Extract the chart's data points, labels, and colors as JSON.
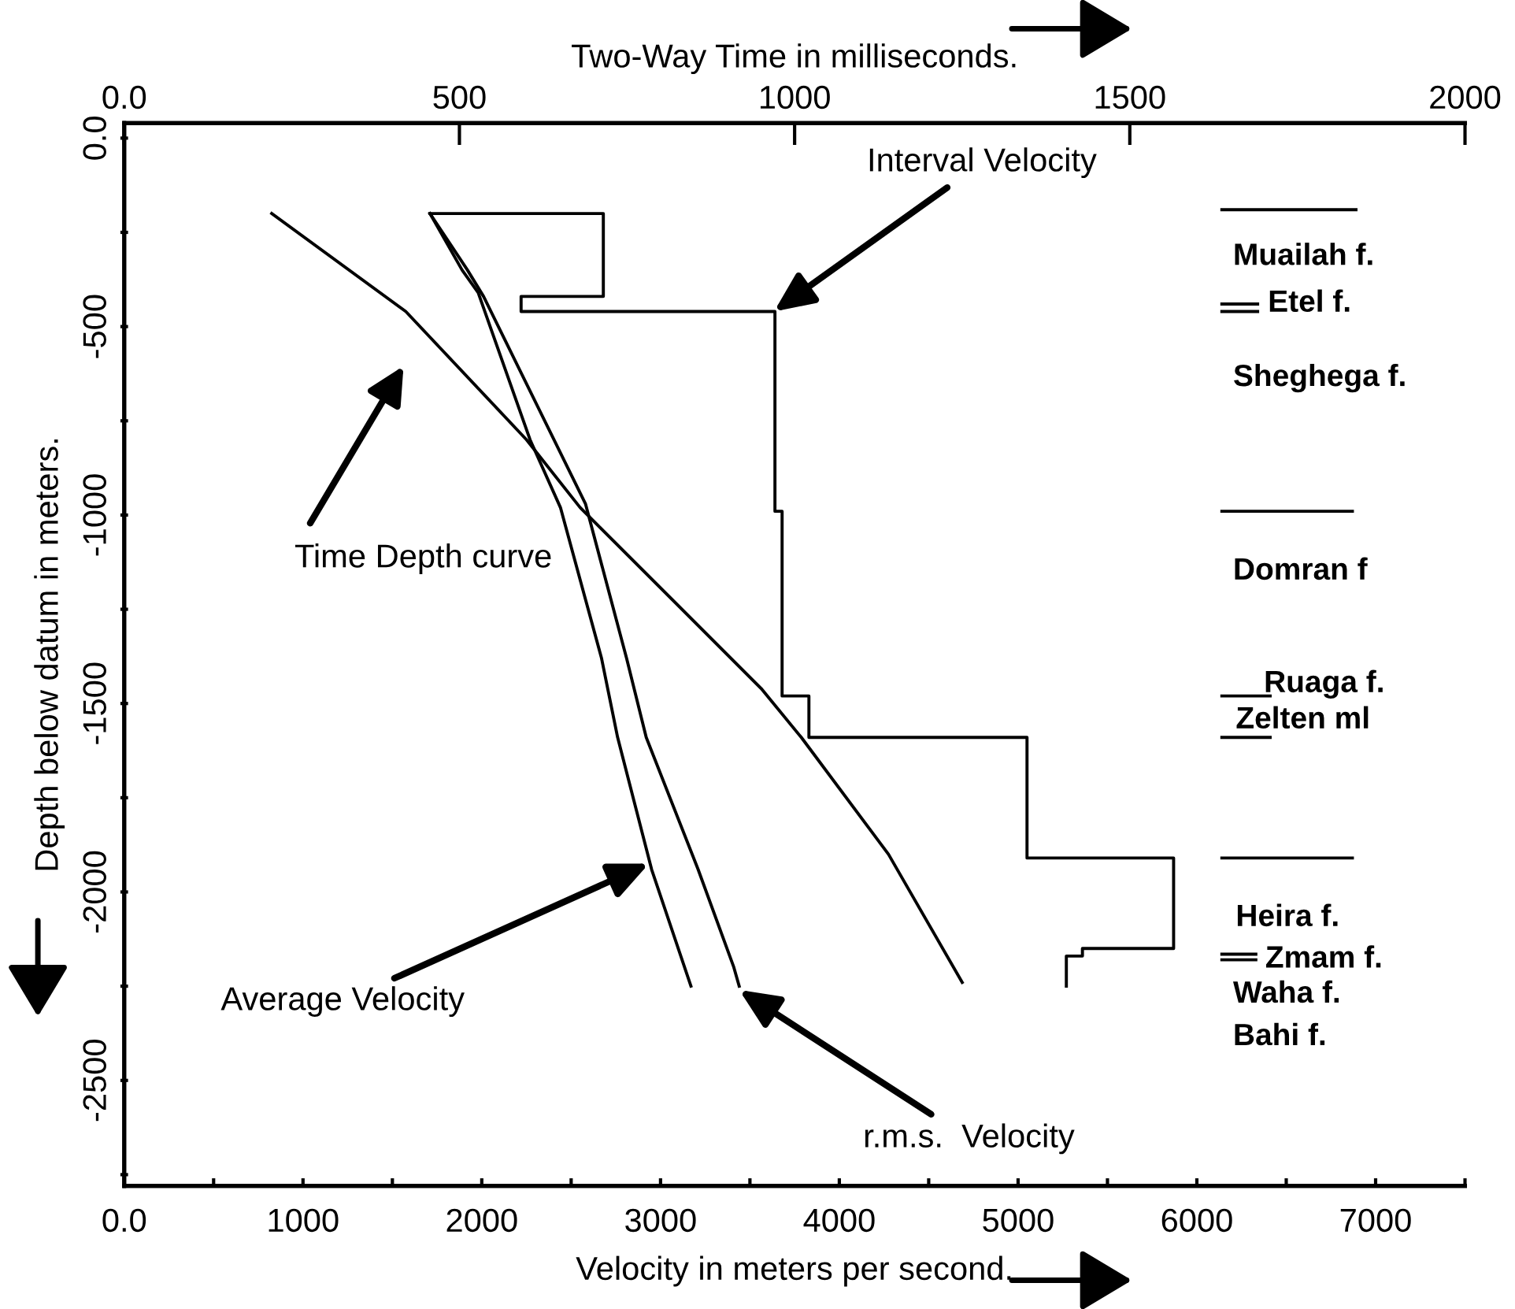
{
  "chart_data": {
    "type": "line",
    "xlabel": "Velocity in meters per second.",
    "x2label": "Two-Way Time in milliseconds.",
    "ylabel": "Depth below datum in meters.",
    "xlim": [
      0,
      7500
    ],
    "x2lim": [
      0,
      2000
    ],
    "ylim": [
      -2780,
      40
    ],
    "xticks": [
      {
        "value": 0,
        "label": "0.0"
      },
      {
        "value": 500,
        "label": null
      },
      1000,
      {
        "value": 1500,
        "label": null
      },
      2000,
      {
        "value": 2500,
        "label": null
      },
      3000,
      {
        "value": 3500,
        "label": null
      },
      4000,
      {
        "value": 4500,
        "label": null
      },
      5000,
      {
        "value": 5500,
        "label": null
      },
      6000,
      {
        "value": 6500,
        "label": null
      },
      7000,
      {
        "value": 7500,
        "label": null
      }
    ],
    "x2ticks": [
      {
        "value": 0,
        "label": "0.0"
      },
      500,
      1000,
      1500,
      2000
    ],
    "yticks": [
      {
        "value": 0,
        "label": "0.0"
      },
      {
        "value": -250,
        "label": null
      },
      -500,
      {
        "value": -750,
        "label": null
      },
      -1000,
      {
        "value": -1250,
        "label": null
      },
      -1500,
      {
        "value": -1750,
        "label": null
      },
      -2000,
      {
        "value": -2250,
        "label": null
      },
      -2500,
      {
        "value": -2750,
        "label": null
      }
    ],
    "grid": false,
    "marker": "none",
    "line_style": "solid",
    "series": [
      {
        "color": "#000000",
        "x": [
          1710,
          2680,
          2680,
          2220,
          2220,
          3640,
          3640,
          3680,
          3680,
          3830,
          3830,
          5050,
          5050,
          5870,
          5870,
          5360,
          5360,
          5270,
          5270
        ],
        "values": [
          -200,
          -200,
          -420,
          -420,
          -460,
          -460,
          -990,
          -990,
          -1480,
          -1480,
          -1590,
          -1590,
          -1910,
          -1910,
          -2150,
          -2150,
          -2170,
          -2170,
          -2250
        ]
      },
      {
        "color": "#000000",
        "x": [
          1710,
          1890,
          1980,
          2270,
          2440,
          2670,
          2760,
          2950,
          3170
        ],
        "values": [
          -200,
          -350,
          -410,
          -800,
          -980,
          -1380,
          -1590,
          -1940,
          -2250
        ]
      },
      {
        "color": "#000000",
        "x": [
          1710,
          1920,
          2010,
          2580,
          2810,
          2920,
          3210,
          3410,
          3440
        ],
        "values": [
          -200,
          -350,
          -420,
          -970,
          -1380,
          -1590,
          -1940,
          -2200,
          -2250
        ]
      },
      {
        "color": "#000000",
        "axis": "x2",
        "x": [
          220,
          420,
          600,
          680,
          950,
          1010,
          1140,
          1250
        ],
        "values": [
          -200,
          -460,
          -800,
          -980,
          -1460,
          -1590,
          -1900,
          -2240
        ]
      },
      {
        "color": "#000000",
        "x": [
          6140,
          6890
        ],
        "values": [
          -190,
          -190
        ]
      },
      {
        "color": "#000000",
        "x": [
          6140,
          6340
        ],
        "values": [
          -440,
          -440
        ]
      },
      {
        "color": "#000000",
        "x": [
          6140,
          6340
        ],
        "values": [
          -460,
          -460
        ]
      },
      {
        "color": "#000000",
        "x": [
          6140,
          6870
        ],
        "values": [
          -990,
          -990
        ]
      },
      {
        "color": "#000000",
        "x": [
          6140,
          6410
        ],
        "values": [
          -1480,
          -1480
        ]
      },
      {
        "color": "#000000",
        "x": [
          6140,
          6410
        ],
        "values": [
          -1590,
          -1590
        ]
      },
      {
        "color": "#000000",
        "x": [
          6140,
          6870
        ],
        "values": [
          -1910,
          -1910
        ]
      },
      {
        "color": "#000000",
        "x": [
          6140,
          6330
        ],
        "values": [
          -2165,
          -2165
        ]
      },
      {
        "color": "#000000",
        "x": [
          6140,
          6330
        ],
        "values": [
          -2180,
          -2180
        ]
      }
    ],
    "annotations": [
      {
        "text": "Interval Velocity",
        "x": 3635,
        "y": -460
      },
      "Time Depth curve",
      {
        "text": "Average Velocity",
        "x": 2935,
        "y": -1925
      },
      {
        "text": "r.m.s.  Velocity",
        "x": 3440,
        "y": -2260
      },
      "Muailah f.",
      "Etel f.",
      "Sheghega f.",
      "Domran f",
      "Ruaga f.",
      "Zelten ml",
      "Heira f.",
      "Zmam f.",
      "Waha f.",
      "Bahi f."
    ]
  }
}
